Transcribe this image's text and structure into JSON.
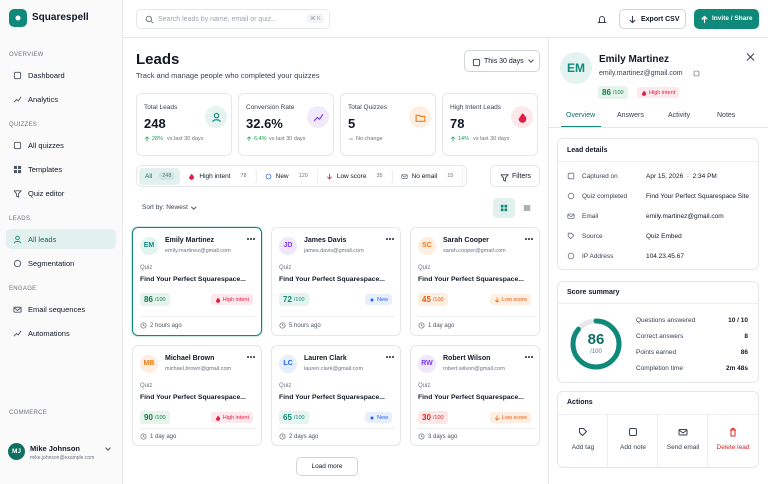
{
  "sidebar": {
    "brand": "Squarespell",
    "sections": [
      {
        "title": "OVERVIEW",
        "items": [
          "Dashboard",
          "Analytics"
        ]
      },
      {
        "title": "QUIZZES",
        "items": [
          "All quizzes",
          "Templates",
          "Quiz editor"
        ]
      },
      {
        "title": "LEADS",
        "items": [
          "All leads",
          "Segmentation"
        ]
      },
      {
        "title": "ENGAGE",
        "items": [
          "Email sequences",
          "Automations"
        ]
      },
      {
        "title": "COMMERCE",
        "items": []
      }
    ],
    "user": {
      "initials": "MJ",
      "name": "Mike Johnson",
      "email": "mike.johnson@example.com"
    }
  },
  "topbar": {
    "search_placeholder": "Search leads by name, email or quiz...",
    "shortcut": "⌘ K",
    "export": "Export CSV",
    "invite": "Invite / Share"
  },
  "page": {
    "title": "Leads",
    "subtitle": "Track and manage people who completed your quizzes",
    "date_range": "This 30 days"
  },
  "stats": [
    {
      "label": "Total Leads",
      "value": 248,
      "change": "28%",
      "note": "vs last 30 days",
      "color": "#16a34a",
      "icon_bg": "#e6f4f1"
    },
    {
      "label": "Conversion Rate",
      "value": "32.6%",
      "change": "6.4%",
      "note": "vs last 30 days",
      "color": "#16a34a",
      "icon_bg": "#f1eafd"
    },
    {
      "label": "Total Quizzes",
      "value": 5,
      "change": "No change",
      "color": "#6b7280",
      "icon_bg": "#fdf0e3"
    },
    {
      "label": "High Intent Leads",
      "value": 78,
      "change": "14%",
      "note": "vs last 30 days",
      "color": "#16a34a",
      "icon_bg": "#fde8ea"
    }
  ],
  "filters": {
    "tabs": [
      {
        "label": "All",
        "count": 248,
        "color": "#0f8a7a"
      },
      {
        "label": "High intent",
        "count": 78,
        "color": "#e11d48"
      },
      {
        "label": "New",
        "count": 120,
        "color": "#2563eb"
      },
      {
        "label": "Low score",
        "count": 35,
        "color": "#dc2626"
      },
      {
        "label": "No email",
        "count": 15,
        "color": "#6b7280"
      }
    ],
    "button": "Filters",
    "sort": "Sort by: Newest"
  },
  "leads": [
    {
      "initials": "EM",
      "name": "Emily Martinez",
      "email": "emily.martinez@gmail.com",
      "quiz_label": "Quiz",
      "quiz": "Find Your Perfect Squarespace...",
      "score": 86,
      "max": "/100",
      "tag": "High intent",
      "time": "2 hours ago",
      "avatar_color": "#0f8a7a",
      "avatar_bg": "#e3f3ef",
      "color": "#0f7a4a",
      "score_bg": "#e6f4ec",
      "tag_color": "#e11d48",
      "tag_bg": "#fde8ec"
    },
    {
      "initials": "JD",
      "name": "James Davis",
      "email": "james.davis@gmail.com",
      "quiz_label": "Quiz",
      "quiz": "Find Your Perfect Squarespace...",
      "score": 72,
      "max": "/100",
      "tag": "New",
      "time": "5 hours ago",
      "avatar_color": "#7c3aed",
      "avatar_bg": "#efe8fd",
      "color": "#0f8a7a",
      "score_bg": "#e6f4f1",
      "tag_color": "#2563eb",
      "tag_bg": "#e7effd"
    },
    {
      "initials": "SC",
      "name": "Sarah Cooper",
      "email": "sarah.cooper@gmail.com",
      "quiz_label": "Quiz",
      "quiz": "Find Your Perfect Squarespace...",
      "score": 45,
      "max": "/100",
      "tag": "Low score",
      "time": "1 day ago",
      "avatar_color": "#ea7a1c",
      "avatar_bg": "#fdeedf",
      "color": "#ea580c",
      "score_bg": "#fdeee2",
      "tag_color": "#ea580c",
      "tag_bg": "#fdeee2"
    },
    {
      "initials": "MB",
      "name": "Michael Brown",
      "email": "michael.brown@gmail.com",
      "quiz_label": "Quiz",
      "quiz": "Find Your Perfect Squarespace...",
      "score": 90,
      "max": "/100",
      "tag": "High intent",
      "time": "1 day ago",
      "avatar_color": "#ea7a1c",
      "avatar_bg": "#fdeedf",
      "color": "#0f7a4a",
      "score_bg": "#e6f4ec",
      "tag_color": "#e11d48",
      "tag_bg": "#fde8ec"
    },
    {
      "initials": "LC",
      "name": "Lauren Clark",
      "email": "lauren.clark@gmail.com",
      "quiz_label": "Quiz",
      "quiz": "Find Your Perfect Squarespace...",
      "score": 65,
      "max": "/100",
      "tag": "New",
      "time": "2 days ago",
      "avatar_color": "#2563eb",
      "avatar_bg": "#e5eefd",
      "color": "#0f8a7a",
      "score_bg": "#e6f4f1",
      "tag_color": "#2563eb",
      "tag_bg": "#e7effd"
    },
    {
      "initials": "RW",
      "name": "Robert Wilson",
      "email": "robert.wilson@gmail.com",
      "quiz_label": "Quiz",
      "quiz": "Find Your Perfect Squarespace...",
      "score": 30,
      "max": "/100",
      "tag": "Low score",
      "time": "3 days ago",
      "avatar_color": "#7c3aed",
      "avatar_bg": "#efe8fd",
      "color": "#dc2626",
      "score_bg": "#fde8e8",
      "tag_color": "#ea580c",
      "tag_bg": "#fdeee2"
    }
  ],
  "load_more": "Load more",
  "detail": {
    "initials": "EM",
    "name": "Emily Martinez",
    "email": "emily.martinez@gmail.com",
    "score": 86,
    "max": "/100",
    "tag": "High intent",
    "tabs": [
      "Overview",
      "Answers",
      "Activity",
      "Notes"
    ],
    "lead_details": {
      "title": "Lead details",
      "rows": [
        {
          "label": "Captured on",
          "value": "Apr 15, 2026  ·  2:34 PM"
        },
        {
          "label": "Quiz completed",
          "value": "Find Your Perfect Squarespace Site"
        },
        {
          "label": "Email",
          "value": "emily.martinez@gmail.com"
        },
        {
          "label": "Source",
          "value": "Quiz Embed"
        },
        {
          "label": "IP Address",
          "value": "104.23.45.67"
        }
      ]
    },
    "score_summary": {
      "title": "Score summary",
      "score": 86,
      "max_value": 100,
      "max": "/100",
      "rows": [
        {
          "label": "Questions answered",
          "value": "10 / 10"
        },
        {
          "label": "Correct answers",
          "value": 8
        },
        {
          "label": "Points earned",
          "value": 86
        },
        {
          "label": "Completion time",
          "value": "2m 48s"
        }
      ]
    },
    "actions": {
      "title": "Actions",
      "items": [
        "Add tag",
        "Add note",
        "Send email",
        "Delete lead"
      ]
    }
  }
}
